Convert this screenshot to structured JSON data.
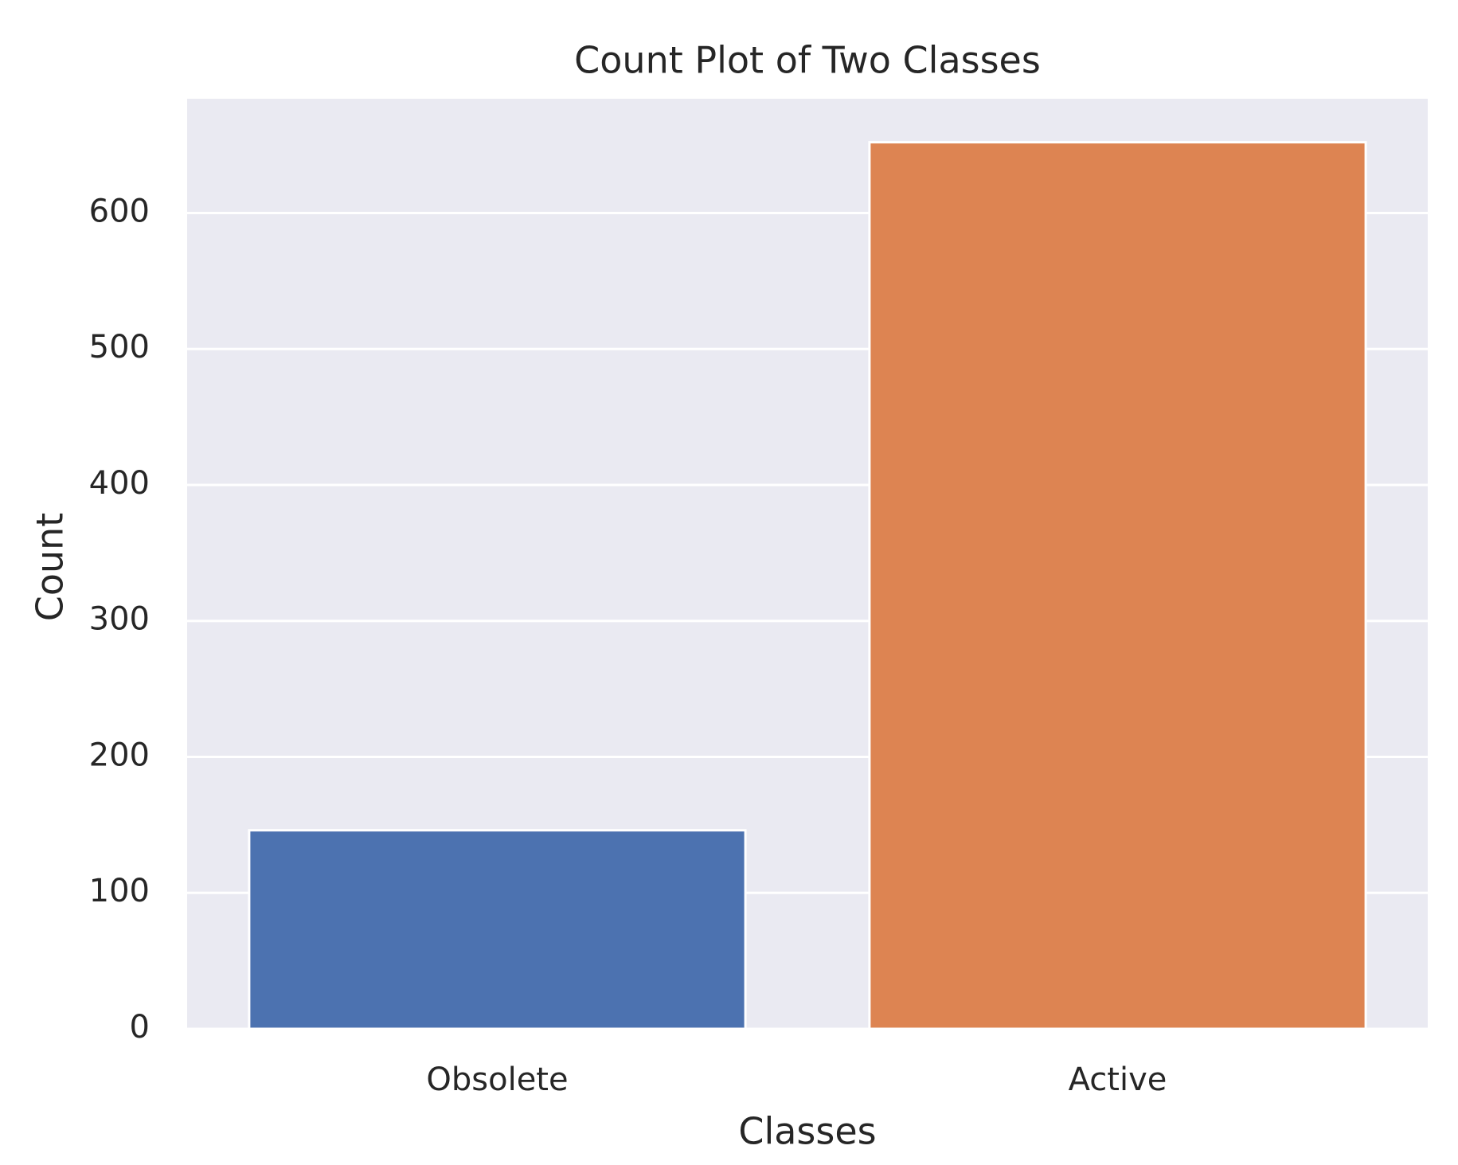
{
  "chart_data": {
    "type": "bar",
    "title": "Count Plot of Two Classes",
    "x_label": "Classes",
    "y_label": "Count",
    "categories": [
      "Obsolete",
      "Active"
    ],
    "values": [
      146,
      652
    ],
    "colors": [
      "#4c72b0",
      "#dd8452"
    ],
    "ylim": [
      0,
      684
    ],
    "yticks": [
      0,
      100,
      200,
      300,
      400,
      500,
      600
    ],
    "grid": true
  }
}
